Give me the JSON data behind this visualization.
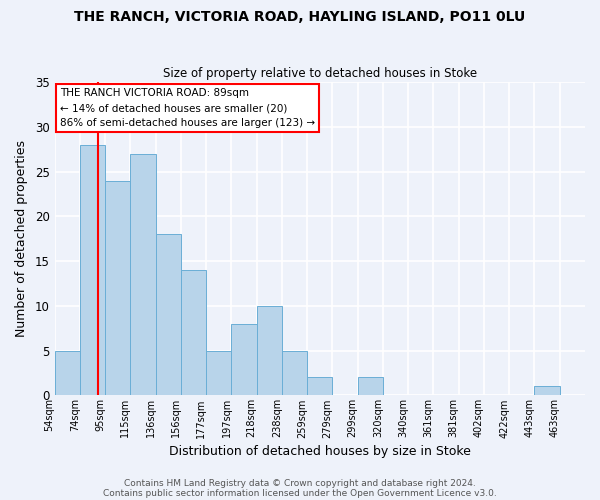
{
  "title": "THE RANCH, VICTORIA ROAD, HAYLING ISLAND, PO11 0LU",
  "subtitle": "Size of property relative to detached houses in Stoke",
  "xlabel": "Distribution of detached houses by size in Stoke",
  "ylabel": "Number of detached properties",
  "bar_labels": [
    "54sqm",
    "74sqm",
    "95sqm",
    "115sqm",
    "136sqm",
    "156sqm",
    "177sqm",
    "197sqm",
    "218sqm",
    "238sqm",
    "259sqm",
    "279sqm",
    "299sqm",
    "320sqm",
    "340sqm",
    "361sqm",
    "381sqm",
    "402sqm",
    "422sqm",
    "443sqm",
    "463sqm"
  ],
  "bar_values": [
    5,
    28,
    24,
    27,
    18,
    14,
    5,
    8,
    10,
    5,
    2,
    0,
    2,
    0,
    0,
    0,
    0,
    0,
    0,
    1,
    0
  ],
  "bar_color": "#b8d4ea",
  "bar_edgecolor": "#6aaed6",
  "vline_color": "red",
  "ylim": [
    0,
    35
  ],
  "yticks": [
    0,
    5,
    10,
    15,
    20,
    25,
    30,
    35
  ],
  "annotation_title": "THE RANCH VICTORIA ROAD: 89sqm",
  "annotation_line1": "← 14% of detached houses are smaller (20)",
  "annotation_line2": "86% of semi-detached houses are larger (123) →",
  "annotation_box_color": "white",
  "annotation_box_edgecolor": "red",
  "footer1": "Contains HM Land Registry data © Crown copyright and database right 2024.",
  "footer2": "Contains public sector information licensed under the Open Government Licence v3.0.",
  "background_color": "#eef2fa"
}
